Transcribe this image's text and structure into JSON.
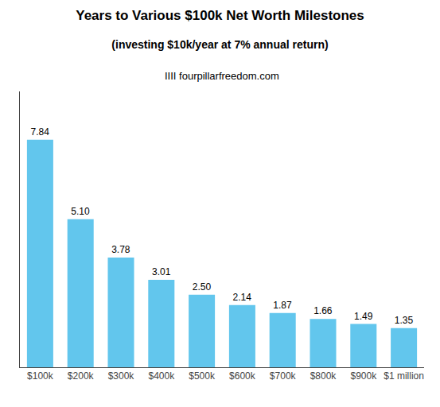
{
  "chart_data": {
    "type": "bar",
    "title": "Years to Various $100k Net Worth Milestones",
    "subtitle": "(investing $10k/year at 7% annual return)",
    "annotations": [
      "IIII fourpillarfreedom.com"
    ],
    "categories": [
      "$100k",
      "$200k",
      "$300k",
      "$400k",
      "$500k",
      "$600k",
      "$700k",
      "$800k",
      "$900k",
      "$1 million"
    ],
    "values": [
      7.84,
      5.1,
      3.78,
      3.01,
      2.5,
      2.14,
      1.87,
      1.66,
      1.49,
      1.35
    ],
    "value_labels": [
      "7.84",
      "5.10",
      "3.78",
      "3.01",
      "2.50",
      "2.14",
      "1.87",
      "1.66",
      "1.49",
      "1.35"
    ],
    "color": "#62C6ED",
    "ylim": [
      0,
      9.5
    ],
    "yticks": [],
    "grid": false,
    "data_labels": true,
    "tick_labels": "x"
  }
}
